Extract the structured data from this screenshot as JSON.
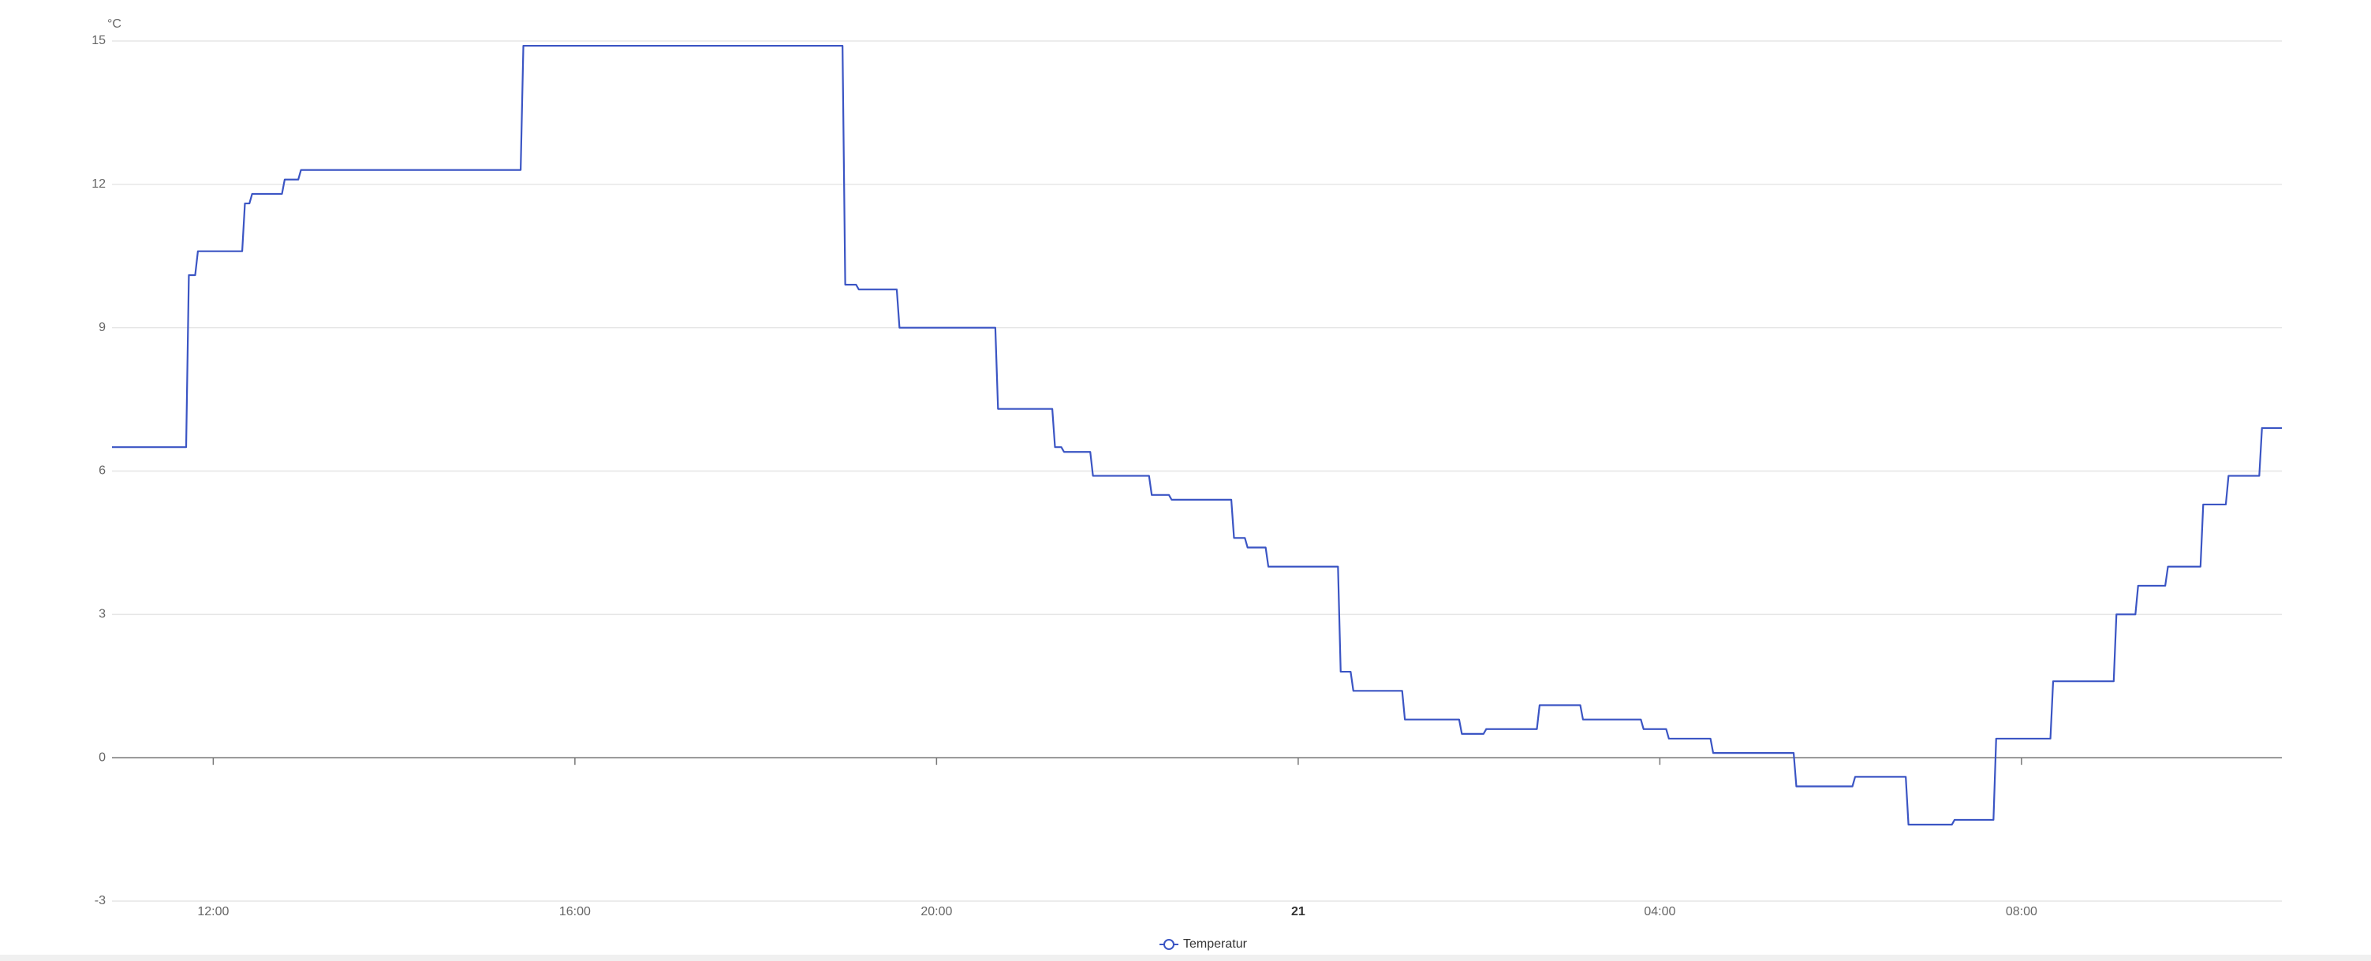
{
  "chart_data": {
    "type": "line",
    "y_unit": "°C",
    "x": [
      10.88,
      11.7,
      11.73,
      11.8,
      11.83,
      12.32,
      12.35,
      12.4,
      12.43,
      12.76,
      12.79,
      12.94,
      12.97,
      15.4,
      15.43,
      18.96,
      18.99,
      19.11,
      19.14,
      19.56,
      19.59,
      20.65,
      20.68,
      21.28,
      21.31,
      21.38,
      21.41,
      21.7,
      21.73,
      22.35,
      22.38,
      22.57,
      22.6,
      23.26,
      23.29,
      23.41,
      23.44,
      23.64,
      23.67,
      24.44,
      24.47,
      24.58,
      24.61,
      25.15,
      25.18,
      25.78,
      25.81,
      26.05,
      26.08,
      26.64,
      26.67,
      27.12,
      27.15,
      27.79,
      27.82,
      28.07,
      28.1,
      28.56,
      28.59,
      29.48,
      29.51,
      30.13,
      30.16,
      30.72,
      30.75,
      31.23,
      31.26,
      31.69,
      31.72,
      32.32,
      32.35,
      33.02,
      33.05,
      33.26,
      33.29,
      33.59,
      33.62,
      33.98,
      34.01,
      34.26,
      34.29,
      34.63,
      34.66,
      34.88
    ],
    "series": [
      {
        "name": "Temperatur",
        "color": "#3b55c4",
        "values": [
          6.5,
          6.5,
          10.1,
          10.1,
          10.6,
          10.6,
          11.6,
          11.6,
          11.8,
          11.8,
          12.1,
          12.1,
          12.3,
          12.3,
          14.9,
          14.9,
          9.9,
          9.9,
          9.8,
          9.8,
          9,
          9,
          7.3,
          7.3,
          6.5,
          6.5,
          6.4,
          6.4,
          5.9,
          5.9,
          5.5,
          5.5,
          5.4,
          5.4,
          4.6,
          4.6,
          4.4,
          4.4,
          4,
          4,
          1.8,
          1.8,
          1.4,
          1.4,
          0.8,
          0.8,
          0.5,
          0.5,
          0.6,
          0.6,
          1.1,
          1.1,
          0.8,
          0.8,
          0.6,
          0.6,
          0.4,
          0.4,
          0.1,
          0.1,
          -0.6,
          -0.6,
          -0.4,
          -0.4,
          -1.4,
          -1.4,
          -1.3,
          -1.3,
          0.4,
          0.4,
          1.6,
          1.6,
          3,
          3,
          3.6,
          3.6,
          4,
          4,
          5.3,
          5.3,
          5.9,
          5.9,
          6.9,
          6.9
        ]
      }
    ],
    "xlim": [
      10.88,
      34.88
    ],
    "xticks": [
      {
        "value": 12,
        "label": "12:00"
      },
      {
        "value": 16,
        "label": "16:00"
      },
      {
        "value": 20,
        "label": "20:00"
      },
      {
        "value": 24,
        "label": "21"
      },
      {
        "value": 28,
        "label": "04:00"
      },
      {
        "value": 32,
        "label": "08:00"
      }
    ],
    "ylim": [
      -3,
      15
    ],
    "yticks": [
      -3,
      0,
      3,
      6,
      9,
      12,
      15
    ],
    "grid": true
  }
}
